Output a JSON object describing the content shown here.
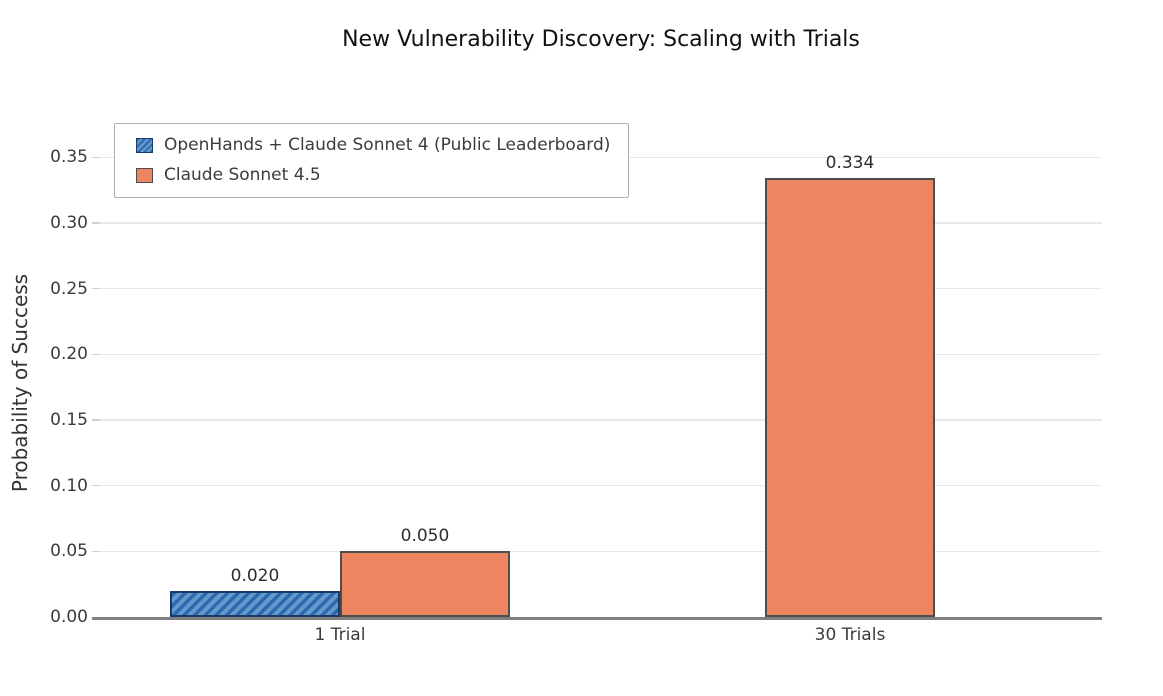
{
  "chart_data": {
    "type": "bar",
    "title": "New Vulnerability Discovery: Scaling with Trials",
    "xlabel": "",
    "ylabel": "Probability of Success",
    "categories": [
      "1 Trial",
      "30 Trials"
    ],
    "series": [
      {
        "name": "OpenHands + Claude Sonnet 4 (Public Leaderboard)",
        "values": [
          0.02,
          null
        ],
        "color": "#6798cc",
        "hatch": "///",
        "hatch_color": "#2b6ab1",
        "edge_color": "#173a66"
      },
      {
        "name": "Claude Sonnet 4.5",
        "values": [
          0.05,
          0.334
        ],
        "color": "#ec8560",
        "hatch": null,
        "hatch_color": null,
        "edge_color": "#4d4d4d"
      }
    ],
    "bar_value_labels": [
      [
        "0.020",
        null
      ],
      [
        "0.050",
        "0.334"
      ]
    ],
    "ylim": [
      0,
      0.37
    ],
    "yticks": [
      0,
      0.05,
      0.1,
      0.15,
      0.2,
      0.25,
      0.3,
      0.35
    ],
    "ytick_labels": [
      "0.00",
      "0.05",
      "0.10",
      "0.15",
      "0.20",
      "0.25",
      "0.30",
      "0.35"
    ],
    "grid": "horizontal",
    "gridline_color": "#e8e8e8",
    "tick_mark_color": "#d0d0d0",
    "axis_line_color": "#808080",
    "legend_position": "upper left",
    "background_color": "#ffffff"
  }
}
